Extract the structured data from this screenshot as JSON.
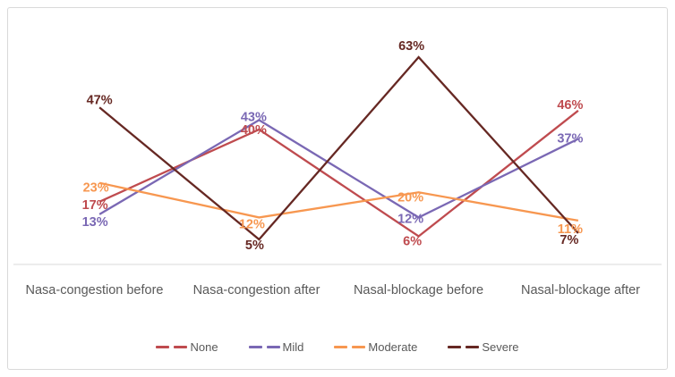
{
  "frame": {
    "border_color": "#d9d9d9",
    "background": "#ffffff"
  },
  "text": {
    "axis_label_color": "#595959",
    "legend_label_color": "#595959",
    "axis_line_color": "#d9d9d9"
  },
  "chart_data": {
    "type": "line",
    "title": "",
    "categories": [
      "Nasa-congestion before",
      "Nasa-congestion after",
      "Nasal-blockage before",
      "Nasal-blockage after"
    ],
    "series": [
      {
        "name": "None",
        "color": "#bf4b4f",
        "values": [
          17,
          40,
          6,
          46
        ]
      },
      {
        "name": "Mild",
        "color": "#7a68b4",
        "values": [
          13,
          43,
          12,
          37
        ]
      },
      {
        "name": "Moderate",
        "color": "#f79750",
        "values": [
          23,
          12,
          20,
          11
        ]
      },
      {
        "name": "Severe",
        "color": "#662823",
        "values": [
          47,
          5,
          63,
          7
        ]
      }
    ],
    "value_suffix": "%",
    "data_labels_visible": true,
    "grid": "off",
    "y_axis": {
      "visible": false,
      "min": 0,
      "max": 75
    },
    "x_axis": {
      "line_visible": true
    },
    "legend": {
      "position": "bottom",
      "entries": [
        "None",
        "Mild",
        "Moderate",
        "Severe"
      ]
    },
    "label_offsets": [
      [
        [
          -5,
          4
        ],
        [
          -6,
          1
        ],
        [
          -7,
          6
        ],
        [
          -9,
          -6
        ]
      ],
      [
        [
          -5,
          9
        ],
        [
          -6,
          -3
        ],
        [
          -9,
          2
        ],
        [
          -9,
          0
        ]
      ],
      [
        [
          -4,
          6
        ],
        [
          -8,
          8
        ],
        [
          -9,
          6
        ],
        [
          -9,
          10
        ]
      ],
      [
        [
          0,
          -8
        ],
        [
          -5,
          7
        ],
        [
          -8,
          -12
        ],
        [
          -10,
          8
        ]
      ]
    ]
  }
}
